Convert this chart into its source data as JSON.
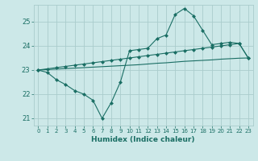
{
  "xlabel": "Humidex (Indice chaleur)",
  "ylabel": "",
  "bg_color": "#cce8e8",
  "grid_color": "#aacccc",
  "line_color": "#1a6e64",
  "ylim": [
    20.7,
    25.7
  ],
  "xlim": [
    -0.5,
    23.5
  ],
  "yticks": [
    21,
    22,
    23,
    24,
    25
  ],
  "xticks": [
    0,
    1,
    2,
    3,
    4,
    5,
    6,
    7,
    8,
    9,
    10,
    11,
    12,
    13,
    14,
    15,
    16,
    17,
    18,
    19,
    20,
    21,
    22,
    23
  ],
  "series1": [
    23.0,
    22.9,
    22.6,
    22.4,
    22.15,
    22.0,
    21.75,
    21.0,
    21.65,
    22.5,
    23.8,
    23.85,
    23.9,
    24.3,
    24.45,
    25.3,
    25.55,
    25.25,
    24.65,
    24.05,
    24.1,
    24.15,
    24.1,
    23.5
  ],
  "series2": [
    23.0,
    23.05,
    23.1,
    23.15,
    23.2,
    23.25,
    23.3,
    23.35,
    23.4,
    23.45,
    23.5,
    23.55,
    23.6,
    23.65,
    23.7,
    23.75,
    23.8,
    23.85,
    23.9,
    23.95,
    24.0,
    24.05,
    24.1,
    23.5
  ],
  "series3": [
    23.0,
    23.02,
    23.04,
    23.06,
    23.08,
    23.1,
    23.12,
    23.14,
    23.16,
    23.18,
    23.2,
    23.22,
    23.25,
    23.28,
    23.3,
    23.33,
    23.36,
    23.38,
    23.4,
    23.42,
    23.45,
    23.47,
    23.49,
    23.5
  ]
}
